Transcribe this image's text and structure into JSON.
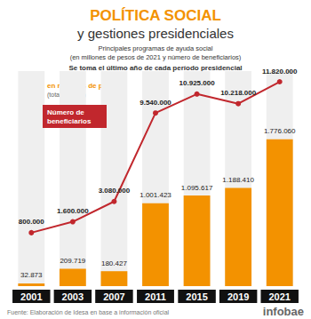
{
  "chart_data": {
    "type": "bar",
    "title": "POLÍTICA SOCIAL",
    "subtitle": "y gestiones presidenciales",
    "description": [
      "Principales programas de ayuda social",
      "(en millones de pesos de 2021 y número de beneficiarios)",
      "Se toma el último año de cada período presidencial"
    ],
    "source": "Fuente: Elaboración de Idesa en base a información oficial",
    "brand": "infobae",
    "categories": [
      "2001",
      "2003",
      "2007",
      "2011",
      "2015",
      "2019",
      "2021"
    ],
    "series": [
      {
        "name": "en millones de pesos",
        "legend_note": "(total por año)",
        "type": "bar",
        "color": "#f39200",
        "values": [
          32873,
          209719,
          180427,
          1001423,
          1095617,
          1188410,
          1776060
        ],
        "value_labels": [
          "32.873",
          "209.719",
          "180.427",
          "1.001.423",
          "1.095.617",
          "1.188.410",
          "1.776.060"
        ]
      },
      {
        "name": "Número de beneficiarios",
        "type": "line",
        "axis": "y2",
        "color": "#c1272d",
        "marker": "circle",
        "values": [
          800000,
          1600000,
          3080000,
          9540000,
          10925000,
          10218000,
          11820000
        ],
        "value_labels": [
          "800.000",
          "1.600.000",
          "3.080.000",
          "9.540.000",
          "10.925.000",
          "10.218.000",
          "11.820.000"
        ]
      }
    ],
    "ylim": [
      0,
      2600000
    ],
    "y2lim": [
      -3100000,
      12600000
    ],
    "data_labels": true,
    "tick_labels": "x",
    "grid": false,
    "legend": "top-left"
  }
}
